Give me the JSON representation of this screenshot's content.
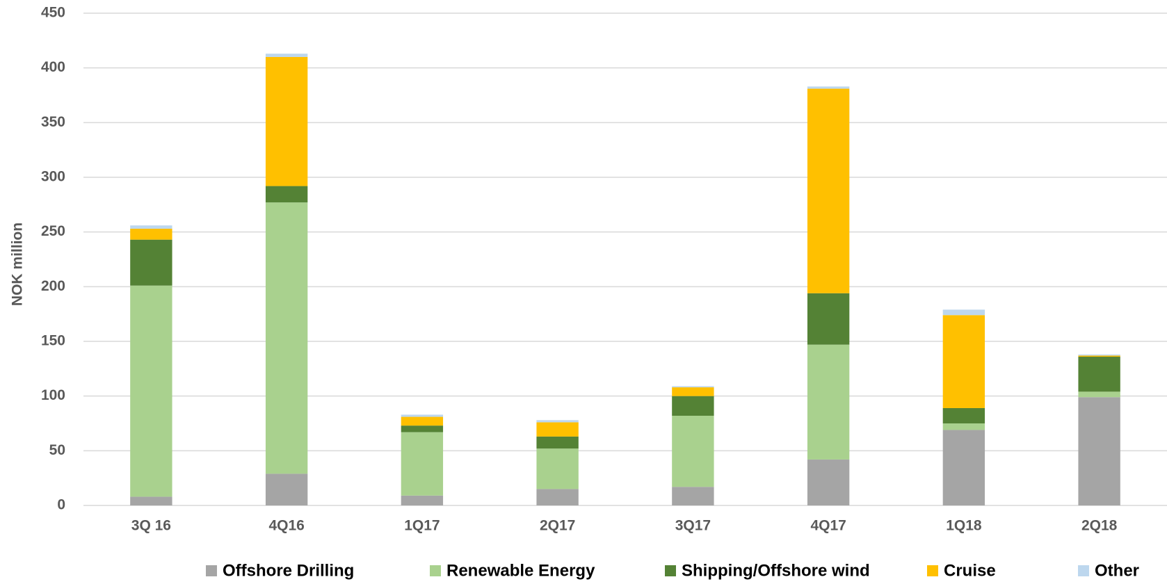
{
  "chart_data": {
    "type": "stacked_bar",
    "y_label": "NOK million",
    "categories": [
      "3Q 16",
      "4Q16",
      "1Q17",
      "2Q17",
      "3Q17",
      "4Q17",
      "1Q18",
      "2Q18"
    ],
    "series": [
      {
        "name": "Offshore Drilling",
        "color": "#a5a5a5",
        "values": [
          8,
          29,
          9,
          15,
          17,
          42,
          69,
          99
        ]
      },
      {
        "name": "Renewable Energy",
        "color": "#a9d18e",
        "values": [
          193,
          248,
          58,
          37,
          65,
          105,
          6,
          5
        ]
      },
      {
        "name": "Shipping/Offshore wind",
        "color": "#548235",
        "values": [
          42,
          15,
          6,
          11,
          18,
          47,
          14,
          32
        ]
      },
      {
        "name": "Cruise",
        "color": "#ffc000",
        "values": [
          10,
          118,
          8,
          13,
          8,
          187,
          85,
          1
        ]
      },
      {
        "name": "Other",
        "color": "#bdd7ee",
        "values": [
          3,
          3,
          2,
          2,
          1,
          2,
          5,
          1
        ]
      }
    ],
    "ylim": [
      0,
      450
    ],
    "yticks": [
      0,
      50,
      100,
      150,
      200,
      250,
      300,
      350,
      400,
      450
    ],
    "grid": true,
    "legend": "bottom"
  }
}
